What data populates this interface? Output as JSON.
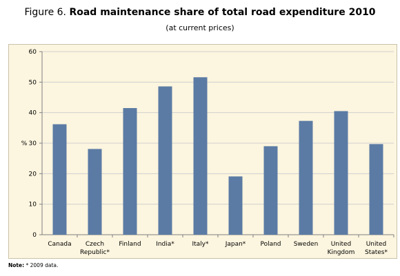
{
  "figure": {
    "prefix": "Figure 6.",
    "title": "Road maintenance share of total road expenditure 2010",
    "subtitle": "(at current prices)"
  },
  "note": {
    "label": "Note:",
    "text": "* 2009 data."
  },
  "colors": {
    "bar": "#5B7BA4",
    "panel_background": "#FCF5DF",
    "gridline": "#CFCFCF"
  },
  "chart_data": {
    "type": "bar",
    "categories": [
      "Canada",
      "Czech Republic*",
      "Finland",
      "India*",
      "Italy*",
      "Japan*",
      "Poland",
      "Sweden",
      "United Kingdom",
      "United States*"
    ],
    "category_label_lines": [
      [
        "Canada"
      ],
      [
        "Czech",
        "Republic*"
      ],
      [
        "Finland"
      ],
      [
        "India*"
      ],
      [
        "Italy*"
      ],
      [
        "Japan*"
      ],
      [
        "Poland"
      ],
      [
        "Sweden"
      ],
      [
        "United",
        "Kingdom"
      ],
      [
        "United",
        "States*"
      ]
    ],
    "values": [
      36.2,
      28.1,
      41.5,
      48.6,
      51.6,
      19.1,
      29.0,
      37.3,
      40.5,
      29.7
    ],
    "ylabel": "%",
    "ylim": [
      0,
      60
    ],
    "yticks": [
      0,
      10,
      20,
      30,
      40,
      50,
      60
    ],
    "grid": true,
    "legend": "none"
  }
}
